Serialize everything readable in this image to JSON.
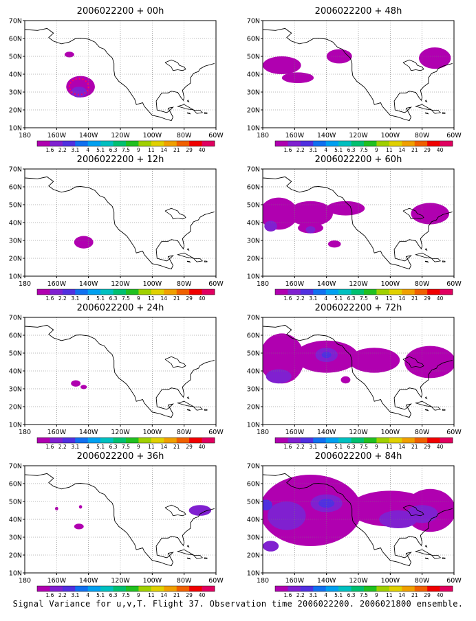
{
  "figure": {
    "caption": "Signal Variance for u,v,T. Flight 37. Observation time 2006022200. 2006021800 ensemble."
  },
  "map_axes": {
    "lat_ticks": [
      "70N",
      "60N",
      "50N",
      "40N",
      "30N",
      "20N",
      "10N"
    ],
    "lon_ticks": [
      "180",
      "160W",
      "140W",
      "120W",
      "100W",
      "80W",
      "60W"
    ],
    "lat_values": [
      70,
      60,
      50,
      40,
      30,
      20,
      10
    ],
    "lon_values": [
      180,
      160,
      140,
      120,
      100,
      80,
      60
    ]
  },
  "colorbar": {
    "labels": [
      "1.6",
      "2.2",
      "3.1",
      "4",
      "5.1",
      "6.3",
      "7.5",
      "9",
      "11",
      "14",
      "21",
      "29",
      "40"
    ],
    "colors": [
      "#b000b0",
      "#8020d0",
      "#5030e0",
      "#1070f0",
      "#00a0f0",
      "#00c0c0",
      "#00c070",
      "#20c020",
      "#a0d000",
      "#e0d000",
      "#f0a000",
      "#f06000",
      "#f00000",
      "#e00060"
    ]
  },
  "panels": [
    {
      "id": "p00",
      "title": "2006022200 + 00h"
    },
    {
      "id": "p48",
      "title": "2006022200 + 48h"
    },
    {
      "id": "p12",
      "title": "2006022200 + 12h"
    },
    {
      "id": "p60",
      "title": "2006022200 + 60h"
    },
    {
      "id": "p24",
      "title": "2006022200 + 24h"
    },
    {
      "id": "p72",
      "title": "2006022200 + 72h"
    },
    {
      "id": "p36",
      "title": "2006022200 + 36h"
    },
    {
      "id": "p84",
      "title": "2006022200 + 84h"
    }
  ]
}
